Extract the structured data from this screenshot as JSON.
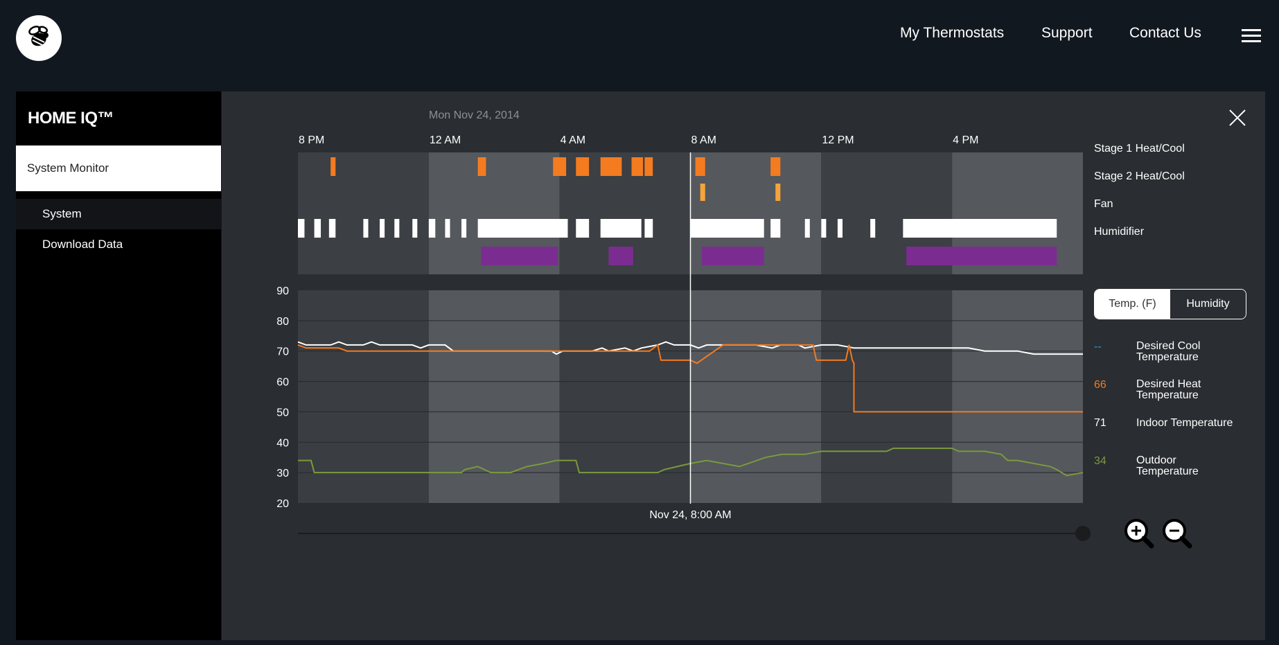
{
  "header": {
    "logo_icon": "bee-logo-icon",
    "nav": [
      "My Thermostats",
      "Support",
      "Contact Us"
    ],
    "menu_icon": "hamburger-menu-icon"
  },
  "sidebar": {
    "title": "HOME IQ™",
    "active": "System Monitor",
    "items": [
      "System",
      "Download Data"
    ]
  },
  "panel": {
    "date": "Mon Nov 24, 2014",
    "time_ticks": [
      "8 PM",
      "12 AM",
      "4 AM",
      "8 AM",
      "12 PM",
      "4 PM"
    ],
    "cursor_label": "Nov 24, 8:00 AM",
    "close_icon": "close-icon"
  },
  "activity": {
    "rows": [
      "Stage 1 Heat/Cool",
      "Stage 2 Heat/Cool",
      "Fan",
      "Humidifier"
    ],
    "colors": {
      "stage1": "#f47b20",
      "stage2": "#f5a33b",
      "fan": "#ffffff",
      "humidifier": "#7b2c91"
    }
  },
  "toggle": {
    "temp": "Temp. (F)",
    "humidity": "Humidity",
    "selected": "Temp. (F)"
  },
  "legend": [
    {
      "value": "--",
      "label1": "Desired Cool",
      "label2": "Temperature",
      "color": "#2aa1d8"
    },
    {
      "value": "66",
      "label1": "Desired Heat",
      "label2": "Temperature",
      "color": "#f47b20"
    },
    {
      "value": "71",
      "label1": "Indoor Temperature",
      "label2": "",
      "color": "#ffffff"
    },
    {
      "value": "34",
      "label1": "Outdoor",
      "label2": "Temperature",
      "color": "#7a9a3e"
    }
  ],
  "zoom": {
    "in_icon": "zoom-in-icon",
    "out_icon": "zoom-out-icon"
  },
  "chart_data": {
    "type": "line",
    "ylim": [
      20,
      90
    ],
    "yticks": [
      90,
      80,
      70,
      60,
      50,
      40,
      30,
      20
    ],
    "xticks": [
      "8 PM",
      "12 AM",
      "4 AM",
      "8 AM",
      "12 PM",
      "4 PM"
    ],
    "x_hours_range": [
      20,
      44
    ],
    "series": [
      {
        "name": "Indoor Temperature",
        "color": "#ffffff",
        "points": [
          [
            20,
            73
          ],
          [
            20.25,
            72
          ],
          [
            21,
            72
          ],
          [
            21.25,
            73
          ],
          [
            21.5,
            72
          ],
          [
            22,
            72
          ],
          [
            22.25,
            73
          ],
          [
            22.5,
            72
          ],
          [
            23,
            72
          ],
          [
            23.5,
            72
          ],
          [
            23.75,
            71
          ],
          [
            24,
            72
          ],
          [
            24.5,
            72
          ],
          [
            24.75,
            70
          ],
          [
            25,
            70
          ],
          [
            26,
            70
          ],
          [
            26.5,
            70
          ],
          [
            27,
            70
          ],
          [
            27.75,
            70
          ],
          [
            27.9,
            69
          ],
          [
            28.1,
            70
          ],
          [
            29,
            70
          ],
          [
            29.3,
            71
          ],
          [
            29.5,
            70
          ],
          [
            30,
            71
          ],
          [
            30.25,
            70
          ],
          [
            30.5,
            71
          ],
          [
            31,
            72
          ],
          [
            31.25,
            73
          ],
          [
            31.5,
            72
          ],
          [
            32,
            72
          ],
          [
            32.25,
            71
          ],
          [
            32.5,
            72
          ],
          [
            33,
            72
          ],
          [
            33.5,
            72
          ],
          [
            34,
            72
          ],
          [
            34.5,
            71
          ],
          [
            34.75,
            72
          ],
          [
            35,
            72
          ],
          [
            35.3,
            72
          ],
          [
            35.5,
            71
          ],
          [
            36,
            72
          ],
          [
            36.5,
            72
          ],
          [
            37,
            71
          ],
          [
            38,
            71
          ],
          [
            40,
            71
          ],
          [
            40.5,
            71
          ],
          [
            41,
            70
          ],
          [
            42,
            70
          ],
          [
            42.5,
            69
          ],
          [
            44,
            69
          ]
        ]
      },
      {
        "name": "Desired Heat Temperature",
        "color": "#f47b20",
        "points": [
          [
            20,
            72
          ],
          [
            20.25,
            71
          ],
          [
            21,
            71
          ],
          [
            21.25,
            71
          ],
          [
            21.5,
            70
          ],
          [
            22,
            70
          ],
          [
            24.5,
            70
          ],
          [
            24.75,
            70
          ],
          [
            26,
            70
          ],
          [
            27,
            70
          ],
          [
            28,
            70
          ],
          [
            29,
            70
          ],
          [
            29.5,
            70
          ],
          [
            30,
            70
          ],
          [
            30.75,
            70
          ],
          [
            31,
            72
          ],
          [
            31.1,
            67
          ],
          [
            32,
            67
          ],
          [
            32.2,
            66
          ],
          [
            33,
            72
          ],
          [
            34,
            72
          ],
          [
            35,
            72
          ],
          [
            35.5,
            72
          ],
          [
            35.75,
            72
          ],
          [
            35.85,
            67
          ],
          [
            36.75,
            67
          ],
          [
            36.85,
            72
          ],
          [
            36.95,
            67
          ],
          [
            37,
            66
          ],
          [
            37,
            50
          ],
          [
            44,
            50
          ]
        ]
      },
      {
        "name": "Outdoor Temperature",
        "color": "#7a9a3e",
        "points": [
          [
            20,
            34
          ],
          [
            20.4,
            34
          ],
          [
            20.5,
            30
          ],
          [
            25,
            30
          ],
          [
            25.1,
            31
          ],
          [
            25.5,
            32
          ],
          [
            25.9,
            30
          ],
          [
            26.5,
            30
          ],
          [
            27,
            32
          ],
          [
            27.5,
            33
          ],
          [
            27.9,
            34
          ],
          [
            28.5,
            34
          ],
          [
            28.6,
            30
          ],
          [
            30,
            30
          ],
          [
            31,
            30
          ],
          [
            31.2,
            31
          ],
          [
            31.6,
            32
          ],
          [
            32,
            33
          ],
          [
            32.5,
            34
          ],
          [
            33,
            33
          ],
          [
            33.5,
            32
          ],
          [
            34.3,
            35
          ],
          [
            34.8,
            36
          ],
          [
            35.5,
            36
          ],
          [
            36,
            37
          ],
          [
            37,
            37
          ],
          [
            38,
            37
          ],
          [
            38.2,
            38
          ],
          [
            39,
            38
          ],
          [
            40,
            38
          ],
          [
            40.2,
            37
          ],
          [
            41,
            37
          ],
          [
            41.5,
            36
          ],
          [
            41.7,
            34
          ],
          [
            42,
            34
          ],
          [
            42.5,
            33
          ],
          [
            43,
            32
          ],
          [
            43.2,
            31
          ],
          [
            43.5,
            29
          ],
          [
            44,
            30
          ]
        ]
      },
      {
        "name": "Desired Cool Temperature",
        "color": "#2aa1d8",
        "points": []
      }
    ]
  }
}
